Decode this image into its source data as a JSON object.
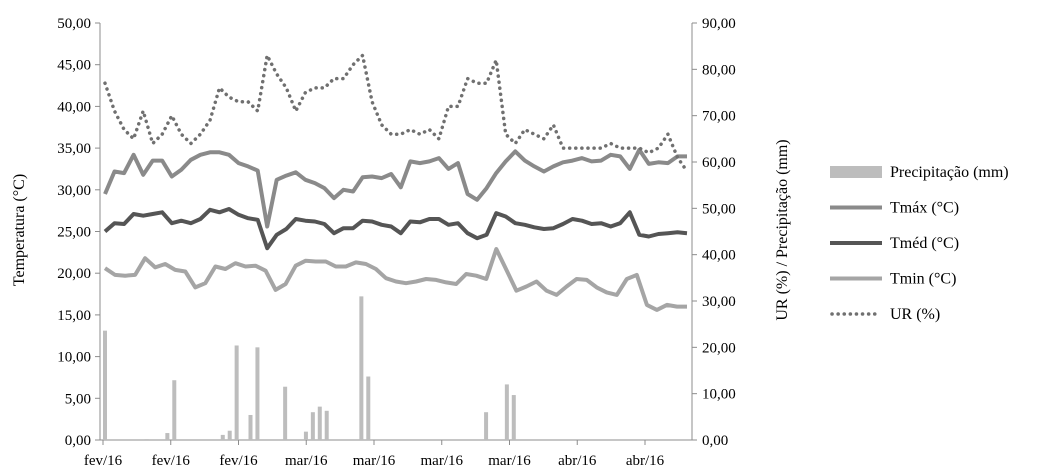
{
  "chart_data": {
    "type": "line",
    "x_tick_labels": [
      "fev/16",
      "fev/16",
      "fev/16",
      "mar/16",
      "mar/16",
      "mar/16",
      "mar/16",
      "abr/16",
      "abr/16"
    ],
    "left_axis": {
      "label": "Temperatura (°C)",
      "ylim": [
        0,
        50
      ],
      "ticks": [
        "0,00",
        "5,00",
        "10,00",
        "15,00",
        "20,00",
        "25,00",
        "30,00",
        "35,00",
        "40,00",
        "45,00",
        "50,00"
      ]
    },
    "right_axis": {
      "label": "UR (%) / Precipitação (mm)",
      "ylim": [
        0,
        90
      ],
      "ticks": [
        "0,00",
        "10,00",
        "20,00",
        "30,00",
        "40,00",
        "50,00",
        "60,00",
        "70,00",
        "80,00",
        "90,00"
      ]
    },
    "series": [
      {
        "name": "Precipitação (mm)",
        "kind": "bar",
        "axis": "right",
        "color": "#bdbdbd",
        "values": [
          23.6,
          0,
          0,
          0,
          0,
          0,
          0.2,
          0,
          0,
          1.5,
          12.9,
          0,
          0,
          0,
          0,
          0,
          0,
          1.1,
          2.0,
          20.4,
          0,
          5.4,
          20.0,
          0,
          0,
          0,
          11.5,
          0,
          0,
          1.8,
          6.0,
          7.2,
          6.3,
          0,
          0,
          0,
          0,
          31.0,
          13.7,
          0,
          0,
          0,
          0,
          0,
          0,
          0,
          0,
          0,
          0,
          0,
          0,
          0,
          0,
          0,
          0,
          6.0,
          0,
          0,
          12.0,
          9.7,
          0,
          0,
          0,
          0,
          0,
          0,
          0,
          0,
          0,
          0,
          0,
          0,
          0,
          0,
          0,
          0,
          0,
          0,
          0,
          0,
          0,
          0,
          0,
          0,
          0
        ]
      },
      {
        "name": "Tmáx (°C)",
        "kind": "line",
        "axis": "left",
        "color": "#8a8a8a",
        "values": [
          29.5,
          32.2,
          32.0,
          34.2,
          31.8,
          33.5,
          33.5,
          31.6,
          32.4,
          33.6,
          34.2,
          34.5,
          34.5,
          34.2,
          33.2,
          32.8,
          32.3,
          25.6,
          31.2,
          31.7,
          32.1,
          31.2,
          30.8,
          30.2,
          29.0,
          30.0,
          29.8,
          31.5,
          31.6,
          31.4,
          31.9,
          30.3,
          33.4,
          33.2,
          33.4,
          33.8,
          32.5,
          33.2,
          29.5,
          28.8,
          30.2,
          32.0,
          33.4,
          34.6,
          33.5,
          32.8,
          32.2,
          32.8,
          33.3,
          33.5,
          33.8,
          33.4,
          33.5,
          34.2,
          34.0,
          32.5,
          34.8,
          33.1,
          33.3,
          33.2,
          34.0,
          34.0
        ]
      },
      {
        "name": "Tméd (°C)",
        "kind": "line",
        "axis": "left",
        "color": "#555555",
        "values": [
          25.0,
          26.0,
          25.9,
          27.1,
          26.9,
          27.1,
          27.3,
          26.0,
          26.3,
          26.0,
          26.5,
          27.6,
          27.3,
          27.7,
          27.0,
          26.6,
          26.4,
          23.0,
          24.6,
          25.3,
          26.5,
          26.3,
          26.2,
          25.9,
          24.8,
          25.4,
          25.4,
          26.3,
          26.2,
          25.8,
          25.6,
          24.8,
          26.2,
          26.1,
          26.5,
          26.5,
          25.8,
          26.0,
          24.8,
          24.2,
          24.6,
          27.2,
          26.8,
          26.0,
          25.8,
          25.5,
          25.3,
          25.4,
          25.9,
          26.5,
          26.3,
          25.9,
          26.0,
          25.6,
          26.0,
          27.3,
          24.6,
          24.4,
          24.7,
          24.8,
          24.9,
          24.8
        ]
      },
      {
        "name": "Tmin (°C)",
        "kind": "line",
        "axis": "left",
        "color": "#a5a5a5",
        "values": [
          20.6,
          19.8,
          19.7,
          19.8,
          21.8,
          20.7,
          21.1,
          20.4,
          20.2,
          18.3,
          18.8,
          20.8,
          20.5,
          21.2,
          20.8,
          20.9,
          20.3,
          18.0,
          18.7,
          20.9,
          21.5,
          21.4,
          21.4,
          20.8,
          20.8,
          21.3,
          21.1,
          20.5,
          19.4,
          19.0,
          18.8,
          19.0,
          19.3,
          19.2,
          18.9,
          18.7,
          19.9,
          19.7,
          19.3,
          22.9,
          20.4,
          17.9,
          18.4,
          19.0,
          17.9,
          17.4,
          18.4,
          19.3,
          19.2,
          18.3,
          17.7,
          17.4,
          19.3,
          19.8,
          16.2,
          15.6,
          16.2,
          16.0,
          16.0
        ]
      },
      {
        "name": "UR (%)",
        "kind": "line",
        "style": "dotted",
        "axis": "right",
        "color": "#707070",
        "values": [
          77.0,
          71.0,
          67.0,
          65.0,
          71.0,
          64.0,
          66.0,
          70.0,
          66.0,
          64.0,
          66.0,
          69.0,
          76.0,
          74.0,
          73.0,
          73.0,
          71.0,
          83.0,
          79.0,
          76.0,
          71.0,
          75.0,
          76.0,
          76.0,
          78.0,
          78.0,
          81.0,
          83.0,
          73.0,
          68.0,
          66.0,
          66.0,
          67.0,
          66.0,
          67.0,
          65.0,
          72.0,
          72.0,
          78.0,
          77.0,
          77.0,
          82.0,
          66.0,
          64.0,
          67.0,
          66.0,
          65.0,
          68.0,
          63.0,
          63.0,
          63.0,
          63.0,
          63.0,
          64.0,
          63.0,
          63.0,
          63.0,
          62.0,
          63.0,
          66.0,
          61.0,
          58.0
        ]
      }
    ],
    "legend": {
      "position": "right",
      "items": [
        {
          "label": "Precipitação (mm)",
          "symbol": "bar"
        },
        {
          "label": "Tmáx (°C)",
          "symbol": "line"
        },
        {
          "label": "Tméd (°C)",
          "symbol": "line"
        },
        {
          "label": "Tmin (°C)",
          "symbol": "line"
        },
        {
          "label": "UR (%)",
          "symbol": "dotted"
        }
      ]
    }
  }
}
